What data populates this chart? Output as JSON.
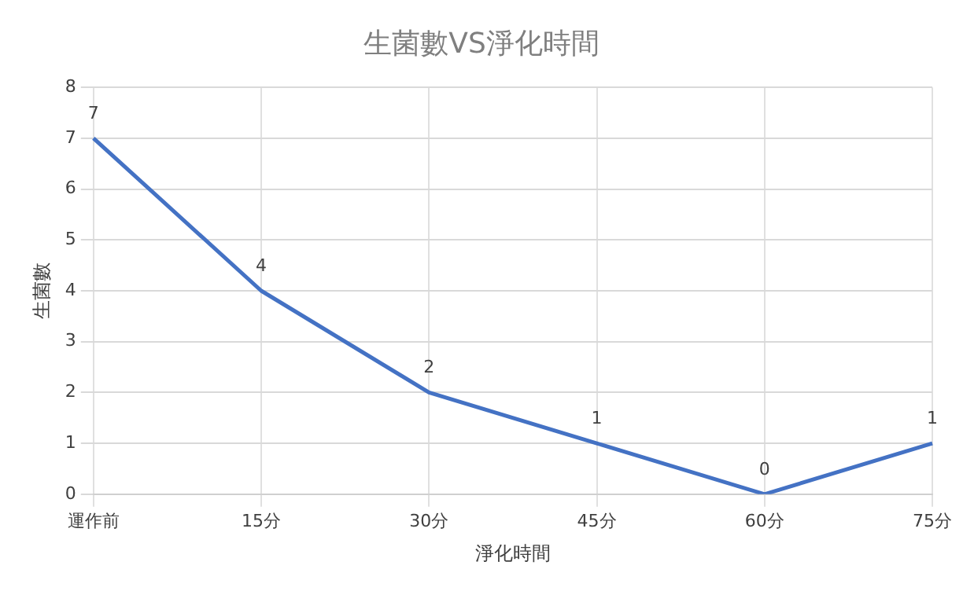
{
  "chart_data": {
    "type": "line",
    "title": "生菌數VS淨化時間",
    "xlabel": "淨化時間",
    "ylabel": "生菌數",
    "categories": [
      "運作前",
      "15分",
      "30分",
      "45分",
      "60分",
      "75分"
    ],
    "series": [
      {
        "color": "#4472c4",
        "values": [
          7,
          4,
          2,
          1,
          0,
          1
        ]
      }
    ],
    "ylim": [
      0,
      8
    ],
    "yticks": [
      0,
      1,
      2,
      3,
      4,
      5,
      6,
      7,
      8
    ],
    "grid": true,
    "data_labels": true,
    "marker": "none",
    "line_style": "solid",
    "legend": false
  }
}
